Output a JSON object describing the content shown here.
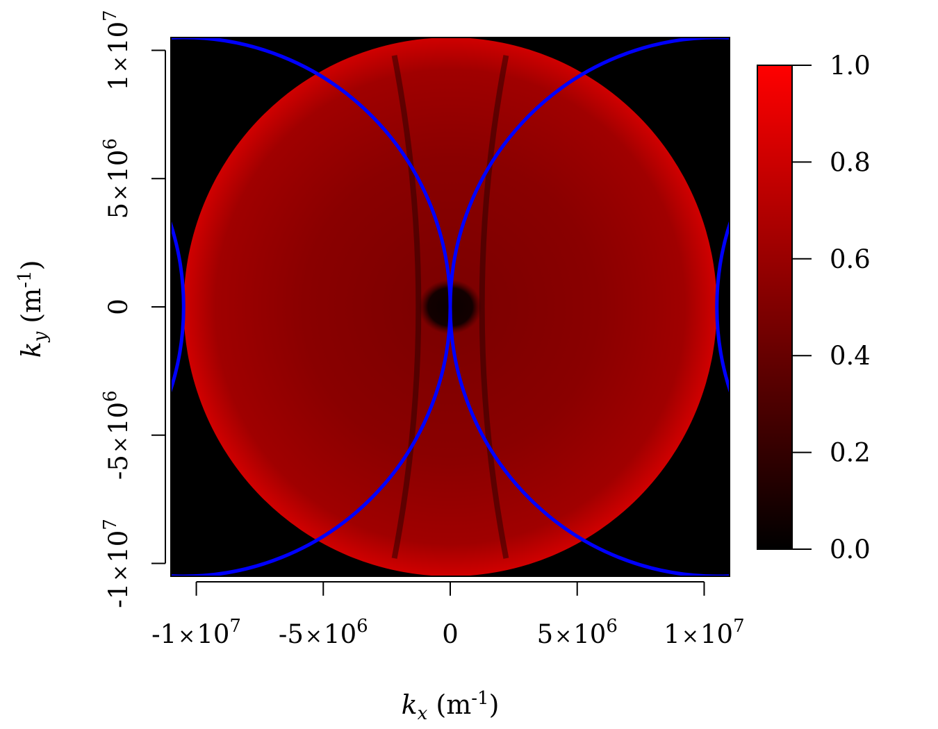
{
  "chart_data": {
    "type": "heatmap",
    "title": "",
    "xlabel": {
      "var": "k",
      "sub": "x",
      "unit_open": " (m",
      "unit_sup": "-1",
      "unit_close": ")"
    },
    "ylabel": {
      "var": "k",
      "sub": "y",
      "unit_open": " (m",
      "unit_sup": "-1",
      "unit_close": ")"
    },
    "xlim": [
      -11000000,
      11000000
    ],
    "ylim": [
      -10500000,
      10500000
    ],
    "x_ticks": [
      {
        "value": -10000000,
        "mant": "-1",
        "times": "×",
        "base": "10",
        "exp": "7"
      },
      {
        "value": -5000000,
        "mant": "-5",
        "times": "×",
        "base": "10",
        "exp": "6"
      },
      {
        "value": 0,
        "mant": "0",
        "times": "",
        "base": "",
        "exp": ""
      },
      {
        "value": 5000000,
        "mant": "5",
        "times": "×",
        "base": "10",
        "exp": "6"
      },
      {
        "value": 10000000,
        "mant": "1",
        "times": "×",
        "base": "10",
        "exp": "7"
      }
    ],
    "y_ticks": [
      {
        "value": -10000000,
        "mant": "-1",
        "times": "×",
        "base": "10",
        "exp": "7"
      },
      {
        "value": -5000000,
        "mant": "-5",
        "times": "×",
        "base": "10",
        "exp": "6"
      },
      {
        "value": 0,
        "mant": "0",
        "times": "",
        "base": "",
        "exp": ""
      },
      {
        "value": 5000000,
        "mant": "5",
        "times": "×",
        "base": "10",
        "exp": "6"
      },
      {
        "value": 10000000,
        "mant": "1",
        "times": "×",
        "base": "10",
        "exp": "7"
      }
    ],
    "colorbar": {
      "range": [
        0,
        1
      ],
      "ticks": [
        {
          "value": 0.0,
          "label": "0.0"
        },
        {
          "value": 0.2,
          "label": "0.2"
        },
        {
          "value": 0.4,
          "label": "0.4"
        },
        {
          "value": 0.6,
          "label": "0.6"
        },
        {
          "value": 0.8,
          "label": "0.8"
        },
        {
          "value": 1.0,
          "label": "1.0"
        }
      ],
      "colors": [
        "#000000",
        "#ff0000"
      ]
    },
    "disk": {
      "center": [
        0,
        0
      ],
      "radius": 10500000,
      "value": 0.62,
      "rim_value": 0.9
    },
    "dark_spot": {
      "center": [
        0,
        0
      ],
      "radius_x": 1000000,
      "radius_y": 850000,
      "value": 0.05
    },
    "circles": {
      "color": "#0000ff",
      "radius": 10500000,
      "centers": [
        [
          -10500000,
          0
        ],
        [
          10500000,
          0
        ],
        [
          -21000000,
          0
        ],
        [
          21000000,
          0
        ]
      ]
    },
    "grid": false
  }
}
